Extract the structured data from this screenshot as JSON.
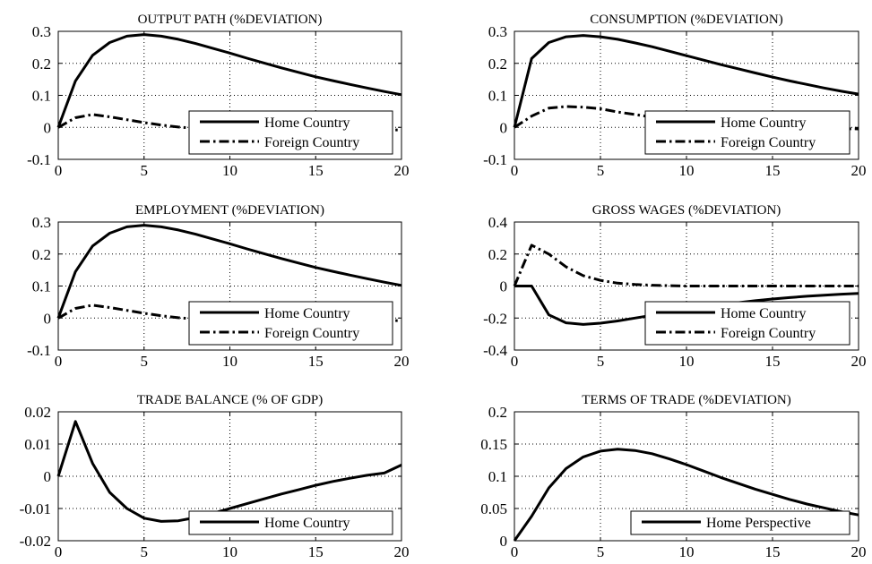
{
  "chart_data": [
    {
      "type": "line",
      "title": "OUTPUT PATH (%DEVIATION)",
      "xlim": [
        0,
        20
      ],
      "ylim": [
        -0.1,
        0.3
      ],
      "xticks": [
        0,
        5,
        10,
        15,
        20
      ],
      "xtick_labels": [
        "0",
        "5",
        "10",
        "15",
        "20"
      ],
      "yticks": [
        -0.1,
        0,
        0.1,
        0.2,
        0.3
      ],
      "ytick_labels": [
        "-0.1",
        "0",
        "0.1",
        "0.2",
        "0.3"
      ],
      "grid": true,
      "legend": "bottom-right",
      "x": [
        0,
        1,
        2,
        3,
        4,
        5,
        6,
        7,
        8,
        9,
        10,
        11,
        12,
        13,
        14,
        15,
        16,
        17,
        18,
        19,
        20
      ],
      "series": [
        {
          "name": "Home Country",
          "style": "solid",
          "values": [
            0,
            0.145,
            0.225,
            0.265,
            0.285,
            0.29,
            0.285,
            0.275,
            0.262,
            0.247,
            0.232,
            0.216,
            0.201,
            0.186,
            0.172,
            0.158,
            0.146,
            0.134,
            0.123,
            0.112,
            0.102
          ]
        },
        {
          "name": "Foreign Country",
          "style": "dashdot",
          "values": [
            0,
            0.03,
            0.04,
            0.033,
            0.024,
            0.015,
            0.007,
            0.001,
            -0.003,
            -0.006,
            -0.008,
            -0.009,
            -0.01,
            -0.01,
            -0.01,
            -0.01,
            -0.01,
            -0.009,
            -0.009,
            -0.008,
            -0.008
          ]
        }
      ]
    },
    {
      "type": "line",
      "title": "CONSUMPTION (%DEVIATION)",
      "xlim": [
        0,
        20
      ],
      "ylim": [
        -0.1,
        0.3
      ],
      "xticks": [
        0,
        5,
        10,
        15,
        20
      ],
      "xtick_labels": [
        "0",
        "5",
        "10",
        "15",
        "20"
      ],
      "yticks": [
        -0.1,
        0,
        0.1,
        0.2,
        0.3
      ],
      "ytick_labels": [
        "-0.1",
        "0",
        "0.1",
        "0.2",
        "0.3"
      ],
      "grid": true,
      "legend": "bottom-right",
      "x": [
        0,
        1,
        2,
        3,
        4,
        5,
        6,
        7,
        8,
        9,
        10,
        11,
        12,
        13,
        14,
        15,
        16,
        17,
        18,
        19,
        20
      ],
      "series": [
        {
          "name": "Home Country",
          "style": "solid",
          "values": [
            0,
            0.215,
            0.265,
            0.283,
            0.287,
            0.283,
            0.275,
            0.264,
            0.252,
            0.238,
            0.224,
            0.21,
            0.196,
            0.183,
            0.17,
            0.157,
            0.145,
            0.134,
            0.123,
            0.113,
            0.104
          ]
        },
        {
          "name": "Foreign Country",
          "style": "dashdot",
          "values": [
            0,
            0.035,
            0.06,
            0.065,
            0.063,
            0.058,
            0.048,
            0.04,
            0.032,
            0.025,
            0.019,
            0.014,
            0.01,
            0.006,
            0.003,
            0.001,
            -0.001,
            -0.002,
            -0.003,
            -0.004,
            -0.005
          ]
        }
      ]
    },
    {
      "type": "line",
      "title": "EMPLOYMENT (%DEVIATION)",
      "xlim": [
        0,
        20
      ],
      "ylim": [
        -0.1,
        0.3
      ],
      "xticks": [
        0,
        5,
        10,
        15,
        20
      ],
      "xtick_labels": [
        "0",
        "5",
        "10",
        "15",
        "20"
      ],
      "yticks": [
        -0.1,
        0,
        0.1,
        0.2,
        0.3
      ],
      "ytick_labels": [
        "-0.1",
        "0",
        "0.1",
        "0.2",
        "0.3"
      ],
      "grid": true,
      "legend": "bottom-right",
      "x": [
        0,
        1,
        2,
        3,
        4,
        5,
        6,
        7,
        8,
        9,
        10,
        11,
        12,
        13,
        14,
        15,
        16,
        17,
        18,
        19,
        20
      ],
      "series": [
        {
          "name": "Home Country",
          "style": "solid",
          "values": [
            0,
            0.145,
            0.225,
            0.265,
            0.285,
            0.29,
            0.285,
            0.275,
            0.262,
            0.247,
            0.232,
            0.216,
            0.201,
            0.186,
            0.172,
            0.158,
            0.146,
            0.134,
            0.123,
            0.112,
            0.102
          ]
        },
        {
          "name": "Foreign Country",
          "style": "dashdot",
          "values": [
            0,
            0.03,
            0.04,
            0.033,
            0.024,
            0.015,
            0.007,
            0.001,
            -0.003,
            -0.006,
            -0.008,
            -0.009,
            -0.01,
            -0.01,
            -0.01,
            -0.01,
            -0.01,
            -0.009,
            -0.009,
            -0.008,
            -0.008
          ]
        }
      ]
    },
    {
      "type": "line",
      "title": "GROSS WAGES (%DEVIATION)",
      "xlim": [
        0,
        20
      ],
      "ylim": [
        -0.4,
        0.4
      ],
      "xticks": [
        0,
        5,
        10,
        15,
        20
      ],
      "xtick_labels": [
        "0",
        "5",
        "10",
        "15",
        "20"
      ],
      "yticks": [
        -0.4,
        -0.2,
        0,
        0.2,
        0.4
      ],
      "ytick_labels": [
        "-0.4",
        "-0.2",
        "0",
        "0.2",
        "0.4"
      ],
      "grid": true,
      "legend": "bottom-right",
      "x": [
        0,
        1,
        2,
        3,
        4,
        5,
        6,
        7,
        8,
        9,
        10,
        11,
        12,
        13,
        14,
        15,
        16,
        17,
        18,
        19,
        20
      ],
      "series": [
        {
          "name": "Home Country",
          "style": "solid",
          "values": [
            0,
            0,
            -0.18,
            -0.23,
            -0.24,
            -0.232,
            -0.218,
            -0.2,
            -0.183,
            -0.165,
            -0.148,
            -0.132,
            -0.117,
            -0.104,
            -0.092,
            -0.081,
            -0.072,
            -0.064,
            -0.057,
            -0.051,
            -0.046
          ]
        },
        {
          "name": "Foreign Country",
          "style": "dashdot",
          "values": [
            0,
            0.255,
            0.2,
            0.12,
            0.065,
            0.035,
            0.018,
            0.01,
            0.005,
            0.002,
            0,
            0,
            0,
            0,
            0,
            0,
            0,
            0,
            0,
            0,
            0
          ]
        }
      ]
    },
    {
      "type": "line",
      "title": "TRADE BALANCE (% OF GDP)",
      "xlim": [
        0,
        20
      ],
      "ylim": [
        -0.02,
        0.02
      ],
      "xticks": [
        0,
        5,
        10,
        15,
        20
      ],
      "xtick_labels": [
        "0",
        "5",
        "10",
        "15",
        "20"
      ],
      "yticks": [
        -0.02,
        -0.01,
        0,
        0.01,
        0.02
      ],
      "ytick_labels": [
        "-0.02",
        "-0.01",
        "0",
        "0.01",
        "0.02"
      ],
      "grid": true,
      "legend": "bottom-right",
      "x": [
        0,
        1,
        2,
        3,
        4,
        5,
        6,
        7,
        8,
        9,
        10,
        11,
        12,
        13,
        14,
        15,
        16,
        17,
        18,
        19,
        20
      ],
      "series": [
        {
          "name": "Home Country",
          "style": "solid",
          "values": [
            0,
            0.017,
            0.004,
            -0.005,
            -0.01,
            -0.013,
            -0.014,
            -0.0138,
            -0.0128,
            -0.0115,
            -0.01,
            -0.0085,
            -0.007,
            -0.0055,
            -0.0042,
            -0.0028,
            -0.0016,
            -0.0006,
            0.0003,
            0.001,
            0.0035
          ]
        }
      ]
    },
    {
      "type": "line",
      "title": "TERMS OF TRADE (%DEVIATION)",
      "xlim": [
        0,
        20
      ],
      "ylim": [
        0,
        0.2
      ],
      "xticks": [
        0,
        5,
        10,
        15,
        20
      ],
      "xtick_labels": [
        "0",
        "5",
        "10",
        "15",
        "20"
      ],
      "yticks": [
        0,
        0.05,
        0.1,
        0.15,
        0.2
      ],
      "ytick_labels": [
        "0",
        "0.05",
        "0.1",
        "0.15",
        "0.2"
      ],
      "grid": true,
      "legend": "bottom-right",
      "x": [
        0,
        1,
        2,
        3,
        4,
        5,
        6,
        7,
        8,
        9,
        10,
        11,
        12,
        13,
        14,
        15,
        16,
        17,
        18,
        19,
        20
      ],
      "series": [
        {
          "name": "Home Perspective",
          "style": "solid",
          "values": [
            0,
            0.038,
            0.082,
            0.112,
            0.13,
            0.139,
            0.142,
            0.14,
            0.135,
            0.127,
            0.118,
            0.108,
            0.098,
            0.089,
            0.08,
            0.072,
            0.064,
            0.057,
            0.051,
            0.045,
            0.04
          ]
        }
      ]
    }
  ]
}
